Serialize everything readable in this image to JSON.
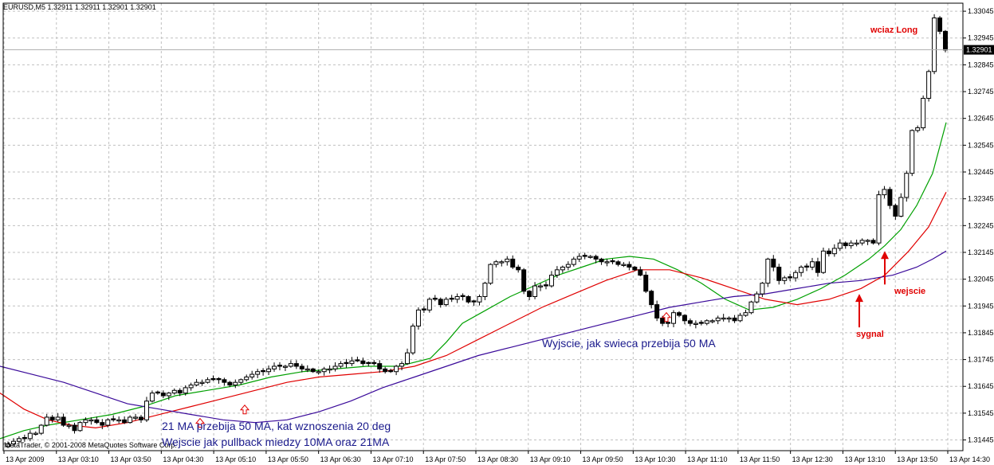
{
  "header": {
    "symbol_info": "EURUSD,M5  1.32911 1.32911 1.32901 1.32901"
  },
  "footer": {
    "copyright": "MetaTrader, © 2001-2008 MetaQuotes Software Corp."
  },
  "colors": {
    "background": "#ffffff",
    "grid": "#c0c0c0",
    "candle": "#000000",
    "ma10": "#00a000",
    "ma21": "#e00000",
    "ma50": "#3a0a9a",
    "annotation_blue": "#1a1a8c",
    "annotation_red": "#e00000",
    "price_tag_bg": "#000000"
  },
  "annotations": {
    "ma_cross": "21 MA przebija 50 MA, kat wznoszenia 20 deg",
    "pullback_entry": "Wejscie jak pullback miedzy 10MA oraz 21MA",
    "exit": "Wyjscie, jak swieca przebija 50 MA",
    "still_long": "wciaz Long",
    "entry": "wejscie",
    "signal": "sygnal"
  },
  "chart_data": {
    "type": "candlestick",
    "title": "EURUSD,M5",
    "ohlc_readout": [
      1.32911,
      1.32911,
      1.32901,
      1.32901
    ],
    "current_price_label": "1.32901",
    "current_price": 1.32901,
    "y_tick_labels": [
      "1.33045",
      "1.32945",
      "1.32845",
      "1.32745",
      "1.32645",
      "1.32545",
      "1.32445",
      "1.32345",
      "1.32245",
      "1.32145",
      "1.32045",
      "1.31945",
      "1.31845",
      "1.31745",
      "1.31645",
      "1.31545",
      "1.31445"
    ],
    "ylim": [
      1.31405,
      1.33075
    ],
    "x_tick_labels": [
      "13 Apr 2009",
      "13 Apr 03:10",
      "13 Apr 03:50",
      "13 Apr 04:30",
      "13 Apr 05:10",
      "13 Apr 05:50",
      "13 Apr 06:30",
      "13 Apr 07:10",
      "13 Apr 07:50",
      "13 Apr 08:30",
      "13 Apr 09:10",
      "13 Apr 09:50",
      "13 Apr 10:30",
      "13 Apr 11:10",
      "13 Apr 11:50",
      "13 Apr 12:30",
      "13 Apr 13:10",
      "13 Apr 13:50",
      "13 Apr 14:30"
    ],
    "grid": true,
    "candles_close": [
      1.3143,
      1.3144,
      1.3145,
      1.3145,
      1.3147,
      1.3147,
      1.315,
      1.3153,
      1.3152,
      1.3153,
      1.315,
      1.315,
      1.3148,
      1.3151,
      1.3152,
      1.3152,
      1.3151,
      1.315,
      1.3152,
      1.3152,
      1.3152,
      1.3151,
      1.3153,
      1.3153,
      1.3152,
      1.3159,
      1.3162,
      1.3162,
      1.3161,
      1.3162,
      1.3163,
      1.3162,
      1.3164,
      1.3165,
      1.3166,
      1.3166,
      1.3167,
      1.3167,
      1.3167,
      1.3166,
      1.3165,
      1.3166,
      1.3167,
      1.3168,
      1.3169,
      1.317,
      1.317,
      1.3171,
      1.3172,
      1.3172,
      1.3172,
      1.3173,
      1.3172,
      1.3171,
      1.3171,
      1.317,
      1.317,
      1.3171,
      1.3171,
      1.3172,
      1.3173,
      1.3173,
      1.3174,
      1.3174,
      1.3173,
      1.3173,
      1.3173,
      1.3171,
      1.317,
      1.317,
      1.3172,
      1.3173,
      1.3177,
      1.3187,
      1.3193,
      1.3193,
      1.3197,
      1.3197,
      1.3195,
      1.3197,
      1.3197,
      1.3198,
      1.3198,
      1.3196,
      1.3196,
      1.3198,
      1.3203,
      1.321,
      1.3211,
      1.3211,
      1.3212,
      1.3209,
      1.3208,
      1.32,
      1.3198,
      1.3202,
      1.3202,
      1.3202,
      1.3206,
      1.3208,
      1.3209,
      1.321,
      1.3212,
      1.3213,
      1.3213,
      1.3213,
      1.3212,
      1.3211,
      1.3211,
      1.3211,
      1.321,
      1.321,
      1.3209,
      1.3208,
      1.3206,
      1.32,
      1.3195,
      1.319,
      1.3188,
      1.3188,
      1.3192,
      1.3191,
      1.3189,
      1.3188,
      1.3188,
      1.3188,
      1.3189,
      1.3189,
      1.319,
      1.319,
      1.319,
      1.3189,
      1.3191,
      1.3192,
      1.3196,
      1.3199,
      1.3203,
      1.3212,
      1.3209,
      1.3204,
      1.3205,
      1.3205,
      1.3207,
      1.3209,
      1.3209,
      1.3211,
      1.3207,
      1.3215,
      1.3214,
      1.3216,
      1.3218,
      1.3217,
      1.3218,
      1.3218,
      1.3219,
      1.3219,
      1.3218,
      1.3236,
      1.3238,
      1.3232,
      1.3228,
      1.3235,
      1.3244,
      1.326,
      1.3261,
      1.3272,
      1.3282,
      1.3302,
      1.3297,
      1.329
    ],
    "series": [
      {
        "name": "10MA",
        "values": [
          [
            0,
            1.3145
          ],
          [
            30,
            1.3148
          ],
          [
            60,
            1.315
          ],
          [
            100,
            1.3152
          ],
          [
            140,
            1.3154
          ],
          [
            180,
            1.3157
          ],
          [
            220,
            1.3161
          ],
          [
            260,
            1.3163
          ],
          [
            300,
            1.3165
          ],
          [
            340,
            1.3168
          ],
          [
            380,
            1.317
          ],
          [
            420,
            1.3171
          ],
          [
            460,
            1.3172
          ],
          [
            500,
            1.3172
          ],
          [
            540,
            1.3175
          ],
          [
            560,
            1.3181
          ],
          [
            580,
            1.3188
          ],
          [
            610,
            1.3193
          ],
          [
            640,
            1.3198
          ],
          [
            670,
            1.3202
          ],
          [
            700,
            1.3206
          ],
          [
            730,
            1.3209
          ],
          [
            760,
            1.3212
          ],
          [
            790,
            1.3213
          ],
          [
            820,
            1.3212
          ],
          [
            850,
            1.3208
          ],
          [
            880,
            1.3203
          ],
          [
            910,
            1.3197
          ],
          [
            940,
            1.3193
          ],
          [
            970,
            1.3194
          ],
          [
            1000,
            1.3197
          ],
          [
            1030,
            1.3201
          ],
          [
            1060,
            1.3206
          ],
          [
            1090,
            1.3212
          ],
          [
            1110,
            1.3217
          ],
          [
            1130,
            1.3223
          ],
          [
            1150,
            1.3232
          ],
          [
            1170,
            1.3244
          ],
          [
            1187,
            1.3263
          ]
        ]
      },
      {
        "name": "21MA",
        "values": [
          [
            0,
            1.3162
          ],
          [
            30,
            1.3156
          ],
          [
            60,
            1.3152
          ],
          [
            90,
            1.315
          ],
          [
            120,
            1.3149
          ],
          [
            160,
            1.3151
          ],
          [
            200,
            1.3154
          ],
          [
            240,
            1.3157
          ],
          [
            280,
            1.316
          ],
          [
            320,
            1.3163
          ],
          [
            360,
            1.3166
          ],
          [
            400,
            1.3168
          ],
          [
            440,
            1.3169
          ],
          [
            480,
            1.317
          ],
          [
            520,
            1.3172
          ],
          [
            560,
            1.3176
          ],
          [
            600,
            1.3182
          ],
          [
            640,
            1.3188
          ],
          [
            680,
            1.3194
          ],
          [
            720,
            1.3199
          ],
          [
            760,
            1.3204
          ],
          [
            800,
            1.3208
          ],
          [
            840,
            1.3208
          ],
          [
            880,
            1.3205
          ],
          [
            920,
            1.3201
          ],
          [
            960,
            1.3197
          ],
          [
            1000,
            1.3195
          ],
          [
            1040,
            1.3197
          ],
          [
            1080,
            1.3201
          ],
          [
            1110,
            1.3206
          ],
          [
            1140,
            1.3215
          ],
          [
            1165,
            1.3224
          ],
          [
            1187,
            1.3237
          ]
        ]
      },
      {
        "name": "50MA",
        "values": [
          [
            0,
            1.3172
          ],
          [
            40,
            1.3169
          ],
          [
            80,
            1.3166
          ],
          [
            120,
            1.3162
          ],
          [
            160,
            1.3158
          ],
          [
            200,
            1.3156
          ],
          [
            240,
            1.3154
          ],
          [
            280,
            1.3152
          ],
          [
            320,
            1.3151
          ],
          [
            360,
            1.3152
          ],
          [
            400,
            1.3155
          ],
          [
            440,
            1.3159
          ],
          [
            480,
            1.3164
          ],
          [
            520,
            1.3168
          ],
          [
            560,
            1.3172
          ],
          [
            600,
            1.3176
          ],
          [
            640,
            1.3179
          ],
          [
            680,
            1.3182
          ],
          [
            720,
            1.3185
          ],
          [
            760,
            1.3188
          ],
          [
            800,
            1.3191
          ],
          [
            840,
            1.3194
          ],
          [
            880,
            1.3196
          ],
          [
            920,
            1.3198
          ],
          [
            960,
            1.3199
          ],
          [
            1000,
            1.3201
          ],
          [
            1040,
            1.3203
          ],
          [
            1080,
            1.3204
          ],
          [
            1120,
            1.3206
          ],
          [
            1150,
            1.3209
          ],
          [
            1170,
            1.3212
          ],
          [
            1187,
            1.3215
          ]
        ]
      }
    ],
    "signal_arrows": [
      {
        "type": "hollow-up",
        "x": 251,
        "price": 1.31525
      },
      {
        "type": "hollow-up",
        "x": 307,
        "price": 1.31575
      },
      {
        "type": "hollow-up",
        "x": 836,
        "price": 1.3192
      },
      {
        "type": "red-up",
        "x": 1078,
        "price": 1.3199
      },
      {
        "type": "red-up",
        "x": 1110,
        "price": 1.3215
      }
    ]
  }
}
